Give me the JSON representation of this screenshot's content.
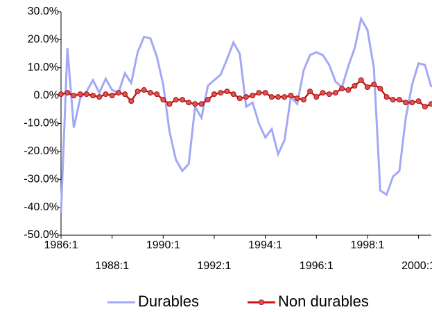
{
  "chart_data": {
    "type": "line",
    "categories": [
      "1986:1",
      null,
      null,
      null,
      null,
      null,
      null,
      null,
      "1988:1",
      null,
      null,
      null,
      null,
      null,
      null,
      null,
      "1990:1",
      null,
      null,
      null,
      null,
      null,
      null,
      null,
      "1992:1",
      null,
      null,
      null,
      null,
      null,
      null,
      null,
      "1994:1",
      null,
      null,
      null,
      null,
      null,
      null,
      null,
      "1996:1",
      null,
      null,
      null,
      null,
      null,
      null,
      null,
      "1998:1",
      null,
      null,
      null,
      null,
      null,
      null,
      null,
      "2000:1",
      null,
      null
    ],
    "series": [
      {
        "name": "Durables",
        "color": "#a3a8f5",
        "marker": false,
        "values": [
          -42,
          17,
          -11.5,
          -1,
          1.5,
          5.5,
          1,
          6,
          2,
          1,
          8,
          4.5,
          15.5,
          21,
          20.5,
          14,
          4,
          -13,
          -23,
          -27,
          -24.5,
          -4,
          -8,
          3.5,
          5.5,
          7.5,
          13,
          19,
          15,
          -4,
          -2.5,
          -10,
          -15,
          -12,
          -21,
          -16,
          -0.5,
          -3,
          9,
          14.5,
          15.5,
          14.5,
          11,
          5,
          3,
          10.5,
          17,
          27.5,
          23.5,
          10,
          -34,
          -35.5,
          -29,
          -27,
          -8,
          4,
          11.5,
          11,
          3
        ]
      },
      {
        "name": "Non durables",
        "color": "#d01010",
        "marker": true,
        "values": [
          0.5,
          1,
          0,
          0.5,
          0.5,
          0,
          -0.5,
          0.5,
          0,
          1,
          0.5,
          -2,
          1.5,
          2,
          1,
          0.5,
          -1.5,
          -3,
          -1.5,
          -1.5,
          -2.5,
          -3,
          -3,
          -1.5,
          0.5,
          1,
          1.5,
          0.5,
          -1,
          -0.5,
          0,
          1,
          1,
          -0.5,
          -0.5,
          -0.5,
          0,
          -1,
          -1.5,
          1.5,
          -0.5,
          1,
          0.5,
          1,
          2.5,
          2,
          3.5,
          5.5,
          3,
          4,
          2.5,
          -0.5,
          -1.5,
          -1.5,
          -2.5,
          -2.5,
          -2,
          -4,
          -3
        ]
      }
    ],
    "ylim": [
      -50,
      30
    ],
    "yticks": [
      {
        "value": -50,
        "label": "-50.0%"
      },
      {
        "value": -40,
        "label": "-40.0%"
      },
      {
        "value": -30,
        "label": "-30.0%"
      },
      {
        "value": -20,
        "label": "-20.0%"
      },
      {
        "value": -10,
        "label": "-10.0%"
      },
      {
        "value": 0,
        "label": "0.0%"
      },
      {
        "value": 10,
        "label": "10.0%"
      },
      {
        "value": 20,
        "label": "20.0%"
      },
      {
        "value": 30,
        "label": "30.0%"
      }
    ],
    "grid": false,
    "legend": "bottom"
  }
}
